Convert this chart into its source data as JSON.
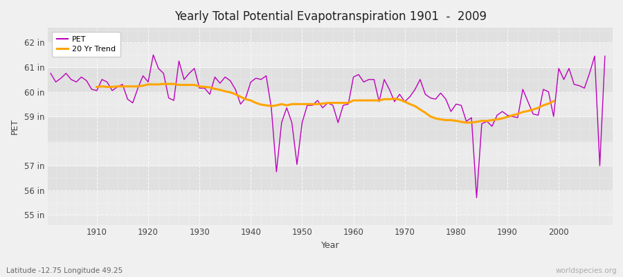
{
  "title": "Yearly Total Potential Evapotranspiration 1901  -  2009",
  "xlabel": "Year",
  "ylabel": "PET",
  "subtitle": "Latitude -12.75 Longitude 49.25",
  "watermark": "worldspecies.org",
  "pet_color": "#bb00bb",
  "trend_color": "#ffa500",
  "fig_bg": "#f0f0f0",
  "plot_bg": "#e8e8e8",
  "band_light": "#ebebeb",
  "band_dark": "#e0e0e0",
  "ylim_low": 54.6,
  "ylim_high": 62.6,
  "xlim_low": 1900.5,
  "xlim_high": 2010.5,
  "ytick_positions": [
    55,
    56,
    57,
    59,
    60,
    61,
    62
  ],
  "ytick_labels": [
    "55 in",
    "56 in",
    "57 in",
    "59 in",
    "60 in",
    "61 in",
    "62 in"
  ],
  "xtick_positions": [
    1910,
    1920,
    1930,
    1940,
    1950,
    1960,
    1970,
    1980,
    1990,
    2000
  ],
  "years": [
    1901,
    1902,
    1903,
    1904,
    1905,
    1906,
    1907,
    1908,
    1909,
    1910,
    1911,
    1912,
    1913,
    1914,
    1915,
    1916,
    1917,
    1918,
    1919,
    1920,
    1921,
    1922,
    1923,
    1924,
    1925,
    1926,
    1927,
    1928,
    1929,
    1930,
    1931,
    1932,
    1933,
    1934,
    1935,
    1936,
    1937,
    1938,
    1939,
    1940,
    1941,
    1942,
    1943,
    1944,
    1945,
    1946,
    1947,
    1948,
    1949,
    1950,
    1951,
    1952,
    1953,
    1954,
    1955,
    1956,
    1957,
    1958,
    1959,
    1960,
    1961,
    1962,
    1963,
    1964,
    1965,
    1966,
    1967,
    1968,
    1969,
    1970,
    1971,
    1972,
    1973,
    1974,
    1975,
    1976,
    1977,
    1978,
    1979,
    1980,
    1981,
    1982,
    1983,
    1984,
    1985,
    1986,
    1987,
    1988,
    1989,
    1990,
    1991,
    1992,
    1993,
    1994,
    1995,
    1996,
    1997,
    1998,
    1999,
    2000,
    2001,
    2002,
    2003,
    2004,
    2005,
    2006,
    2007,
    2008,
    2009
  ],
  "pet_values": [
    60.75,
    60.4,
    60.55,
    60.75,
    60.5,
    60.4,
    60.6,
    60.45,
    60.1,
    60.05,
    60.5,
    60.4,
    60.05,
    60.2,
    60.3,
    59.7,
    59.55,
    60.15,
    60.65,
    60.4,
    61.5,
    60.95,
    60.75,
    59.75,
    59.65,
    61.25,
    60.5,
    60.75,
    60.95,
    60.15,
    60.15,
    59.9,
    60.6,
    60.35,
    60.6,
    60.45,
    60.1,
    59.5,
    59.75,
    60.4,
    60.55,
    60.5,
    60.65,
    59.35,
    56.75,
    58.75,
    59.35,
    58.75,
    57.05,
    58.75,
    59.45,
    59.45,
    59.65,
    59.35,
    59.55,
    59.45,
    58.75,
    59.45,
    59.5,
    60.6,
    60.7,
    60.4,
    60.5,
    60.5,
    59.6,
    60.5,
    60.1,
    59.6,
    59.9,
    59.6,
    59.8,
    60.1,
    60.5,
    59.9,
    59.75,
    59.7,
    59.95,
    59.7,
    59.2,
    59.5,
    59.45,
    58.8,
    58.95,
    55.7,
    58.7,
    58.8,
    58.6,
    59.05,
    59.2,
    59.05,
    59.0,
    58.95,
    60.1,
    59.6,
    59.1,
    59.05,
    60.1,
    60.0,
    59.0,
    60.95,
    60.5,
    60.95,
    60.3,
    60.25,
    60.15,
    60.75,
    61.45,
    57.0,
    61.45
  ],
  "trend_values": [
    null,
    null,
    null,
    null,
    null,
    null,
    null,
    null,
    null,
    60.2,
    60.22,
    60.2,
    60.2,
    60.22,
    60.22,
    60.22,
    60.22,
    60.22,
    60.25,
    60.3,
    60.3,
    60.3,
    60.32,
    60.32,
    60.32,
    60.28,
    60.28,
    60.28,
    60.28,
    60.22,
    60.2,
    60.18,
    60.12,
    60.08,
    60.02,
    59.98,
    59.9,
    59.8,
    59.7,
    59.65,
    59.55,
    59.48,
    59.45,
    59.42,
    59.45,
    59.5,
    59.45,
    59.5,
    59.5,
    59.5,
    59.5,
    59.5,
    59.5,
    59.52,
    59.55,
    59.55,
    59.55,
    59.55,
    59.55,
    59.65,
    59.65,
    59.65,
    59.65,
    59.65,
    59.65,
    59.7,
    59.7,
    59.72,
    59.68,
    59.6,
    59.5,
    59.42,
    59.28,
    59.15,
    59.0,
    58.92,
    58.88,
    58.85,
    58.85,
    58.82,
    58.78,
    58.75,
    58.75,
    58.78,
    58.82,
    58.82,
    58.85,
    58.88,
    58.92,
    58.98,
    59.05,
    59.1,
    59.18,
    59.22,
    59.28,
    59.35,
    59.45,
    59.52,
    59.62,
    null,
    null,
    null,
    null,
    null,
    null,
    null,
    null,
    null
  ]
}
